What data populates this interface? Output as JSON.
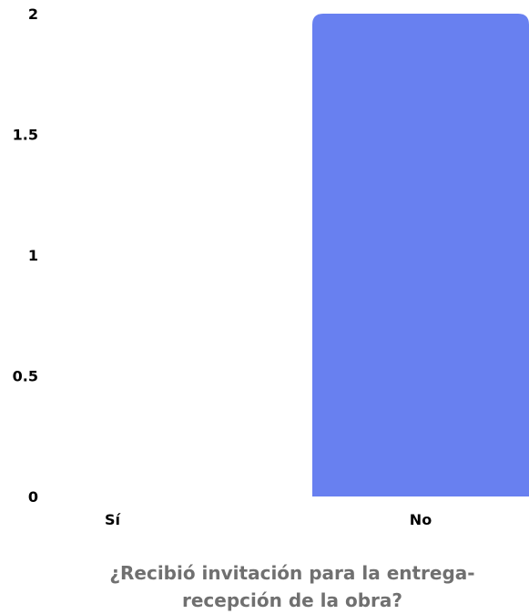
{
  "chart_data": {
    "type": "bar",
    "categories": [
      "Sí",
      "No"
    ],
    "values": [
      0,
      2
    ],
    "title_lines": [
      "¿Recibió invitación para la entrega-",
      "recepción de la obra?"
    ],
    "xlabel": "",
    "ylabel": "",
    "ylim": [
      0,
      2
    ],
    "yticks": [
      "0",
      "0.5",
      "1",
      "1.5",
      "2"
    ],
    "grid": false,
    "legend": "none",
    "bar_color": "#6880F0"
  }
}
